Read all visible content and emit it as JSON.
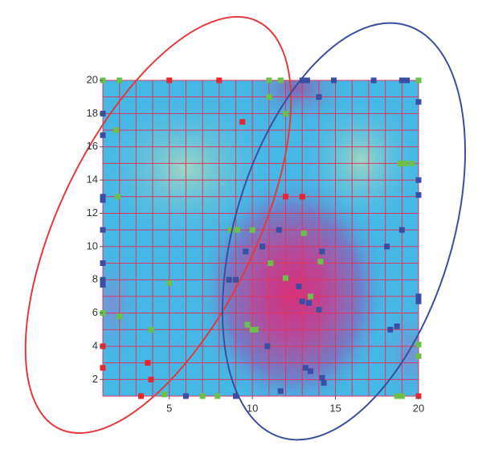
{
  "chart_data": {
    "type": "scatter",
    "xlim": [
      1,
      20
    ],
    "ylim": [
      1,
      20
    ],
    "xticks": [
      5,
      10,
      15,
      20
    ],
    "yticks": [
      2,
      4,
      6,
      8,
      10,
      12,
      14,
      16,
      18,
      20
    ],
    "minor_xticks": [
      1,
      2,
      3,
      4,
      5,
      6,
      7,
      8,
      9,
      10,
      11,
      12,
      13,
      14,
      15,
      16,
      17,
      18,
      19,
      20
    ],
    "minor_yticks": [
      1,
      2,
      3,
      4,
      5,
      6,
      7,
      8,
      9,
      10,
      11,
      12,
      13,
      14,
      15,
      16,
      17,
      18,
      19,
      20
    ],
    "grid": true,
    "grid_color": "#e0365f",
    "series": [
      {
        "color": "#e8262e",
        "x": [
          1,
          5,
          8,
          9.4,
          12,
          13,
          1,
          1,
          3.7,
          3.9,
          3.3,
          20
        ],
        "y": [
          20,
          20,
          20,
          17.5,
          13,
          13,
          4,
          2.7,
          3,
          2,
          1,
          1
        ]
      },
      {
        "color": "#3a4fa3",
        "x": [
          1,
          1,
          1,
          1,
          1,
          1,
          1,
          1,
          6,
          9,
          13,
          13.3,
          14,
          14.9,
          17.3,
          19,
          19.3,
          20,
          20,
          20,
          19,
          18.1,
          20,
          20,
          18.3,
          18.7,
          11.6,
          10.6,
          9.6,
          8.6,
          9,
          12.8,
          13,
          13.4,
          14,
          14.2,
          10.9,
          13.2,
          13.5,
          14.2,
          14.3,
          11.7
        ],
        "y": [
          18,
          16.7,
          13,
          12.8,
          11,
          9,
          8,
          7.7,
          1,
          1,
          20,
          20,
          19,
          20,
          20,
          20,
          20,
          18.7,
          14,
          13.1,
          11,
          10,
          7,
          6.7,
          5,
          5.2,
          11,
          10,
          9.7,
          8,
          8,
          7.6,
          6.7,
          6.6,
          6.2,
          9.7,
          4,
          2.7,
          2.5,
          2.1,
          1.8,
          1.3
        ]
      },
      {
        "color": "#6cc04a",
        "x": [
          1,
          2,
          11,
          11.7,
          20,
          11,
          12,
          1.8,
          1.9,
          18.9,
          19.2,
          19.6,
          8.7,
          9.1,
          10,
          13.1,
          11.1,
          14.1,
          12,
          13.5,
          5,
          1,
          2,
          3.9,
          9.7,
          10,
          10.2,
          20,
          20,
          4.7,
          7,
          7.9,
          18.7,
          19
        ],
        "y": [
          20,
          20,
          20,
          20,
          20,
          19,
          18,
          17,
          13,
          15,
          15,
          15,
          11,
          11,
          11,
          10.8,
          9,
          9.1,
          8.1,
          7,
          7.8,
          6,
          5.8,
          5,
          5.3,
          5,
          5,
          4.1,
          3.4,
          1.1,
          1,
          1,
          1,
          1
        ]
      }
    ]
  }
}
